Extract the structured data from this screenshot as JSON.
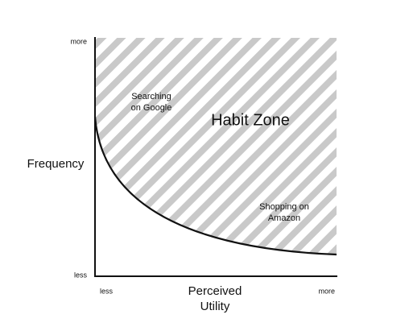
{
  "y_axis": {
    "label": "Frequency",
    "top": "more",
    "bottom": "less"
  },
  "x_axis": {
    "label_lines": [
      "Perceived",
      "Utility"
    ],
    "left": "less",
    "right": "more"
  },
  "zone": {
    "label": "Habit Zone"
  },
  "annotations": [
    {
      "lines": [
        "Searching",
        "on Google"
      ]
    },
    {
      "lines": [
        "Shopping on",
        "Amazon"
      ]
    }
  ]
}
